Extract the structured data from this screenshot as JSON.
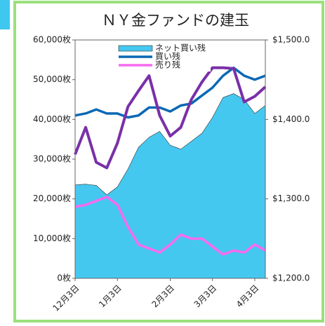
{
  "chart_data": {
    "type": "combo",
    "title": "ＮＹ金ファンドの建玉",
    "categories": [
      "12月3日",
      null,
      null,
      null,
      "1月3日",
      null,
      null,
      null,
      null,
      "2月3日",
      null,
      null,
      null,
      "3月3日",
      null,
      null,
      null,
      "4月3日",
      null
    ],
    "series": [
      {
        "name": "ネット買い残",
        "kind": "area",
        "color": "#45c8f0",
        "values": [
          23500,
          23700,
          23400,
          21000,
          23000,
          27500,
          33000,
          35500,
          37000,
          33500,
          32500,
          34500,
          36500,
          40500,
          45500,
          46500,
          45000,
          41500,
          43500
        ]
      },
      {
        "name": "買い残",
        "kind": "line",
        "color": "#0a68b4",
        "values": [
          41000,
          41500,
          42500,
          41500,
          41500,
          40500,
          41000,
          43000,
          43000,
          42000,
          43500,
          44000,
          46000,
          48000,
          51000,
          53000,
          51000,
          50000,
          51000
        ]
      },
      {
        "name": "売り残",
        "kind": "line",
        "color": "#f86af0",
        "values": [
          18000,
          18500,
          19500,
          20500,
          18500,
          13000,
          8500,
          7500,
          6500,
          8500,
          11000,
          10000,
          10000,
          8000,
          6000,
          7000,
          6500,
          8500,
          7000
        ]
      },
      {
        "kind": "line",
        "axis": "y2",
        "color": "#7a30a8",
        "values": [
          1356,
          1390,
          1346,
          1339,
          1370,
          1416,
          1436,
          1455,
          1405,
          1379,
          1390,
          1425,
          1447,
          1465,
          1465,
          1464,
          1422,
          1429,
          1441
        ]
      }
    ],
    "ylim": [
      0,
      60000
    ],
    "yticks": [
      {
        "value": 0,
        "label": "0枚"
      },
      {
        "value": 10000,
        "label": "10,000枚"
      },
      {
        "value": 20000,
        "label": "20,000枚"
      },
      {
        "value": 30000,
        "label": "30,000枚"
      },
      {
        "value": 40000,
        "label": "40,000枚"
      },
      {
        "value": 50000,
        "label": "50,000枚"
      },
      {
        "value": 60000,
        "label": "60,000枚"
      }
    ],
    "y2lim": [
      1200,
      1500
    ],
    "y2ticks": [
      {
        "value": 1200,
        "label": "$1,200.0"
      },
      {
        "value": 1300,
        "label": "$1,300.0"
      },
      {
        "value": 1400,
        "label": "$1,400.0"
      },
      {
        "value": 1500,
        "label": "$1,500.0"
      }
    ],
    "grid": false,
    "legend": "top"
  }
}
